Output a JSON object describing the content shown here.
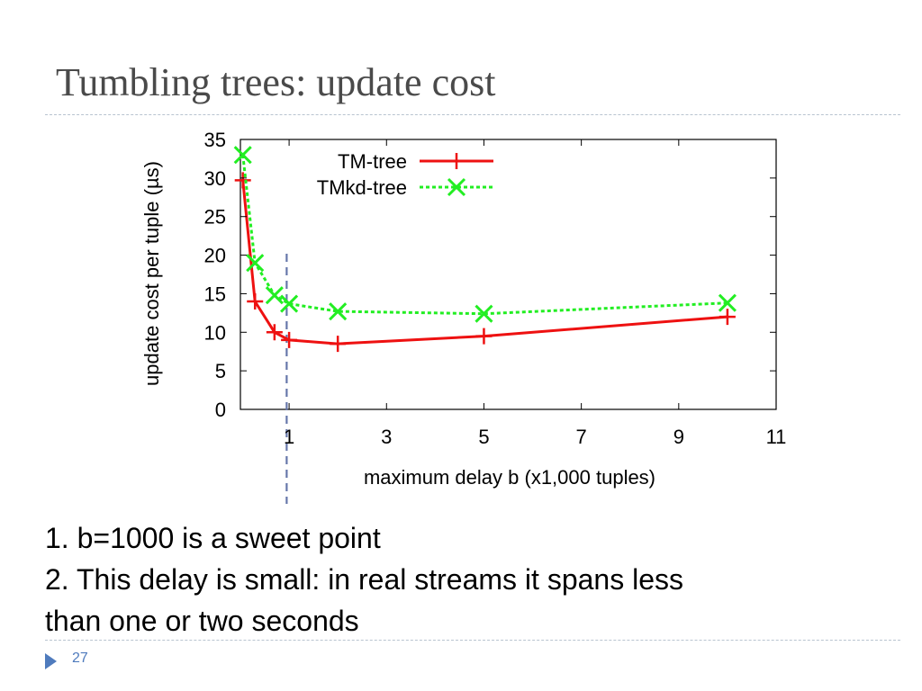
{
  "slide": {
    "title": "Tumbling trees: update cost",
    "notes": [
      "1. b=1000 is a sweet point",
      "2. This delay is small: in real streams it spans less",
      "than one or two seconds"
    ],
    "page_number": "27",
    "bullet_icon": "triangle-bullet-icon"
  },
  "chart_data": {
    "type": "line",
    "xlabel": "maximum delay b (x1,000 tuples)",
    "ylabel": "update cost per tuple (µs)",
    "xlim": [
      0,
      11
    ],
    "ylim": [
      0,
      35
    ],
    "x_ticks": [
      1,
      3,
      5,
      7,
      9,
      11
    ],
    "y_ticks": [
      0,
      5,
      10,
      15,
      20,
      25,
      30,
      35
    ],
    "grid": false,
    "legend_position": "top-left",
    "series": [
      {
        "name": "TM-tree",
        "color": "#ee1111",
        "line_style": "solid",
        "marker": "plus",
        "x": [
          0.05,
          0.3,
          0.7,
          1,
          2,
          5,
          10
        ],
        "y": [
          29.7,
          14,
          10,
          9,
          8.5,
          9.5,
          12
        ]
      },
      {
        "name": "TMkd-tree",
        "color": "#22ee22",
        "line_style": "dotted",
        "marker": "x",
        "x": [
          0.05,
          0.3,
          0.7,
          1,
          2,
          5,
          10
        ],
        "y": [
          33,
          19,
          14.8,
          13.7,
          12.7,
          12.4,
          13.8
        ]
      }
    ],
    "annotations": [
      {
        "type": "vertical-dashed-line",
        "x": 0.95,
        "color": "#6677aa"
      }
    ]
  }
}
